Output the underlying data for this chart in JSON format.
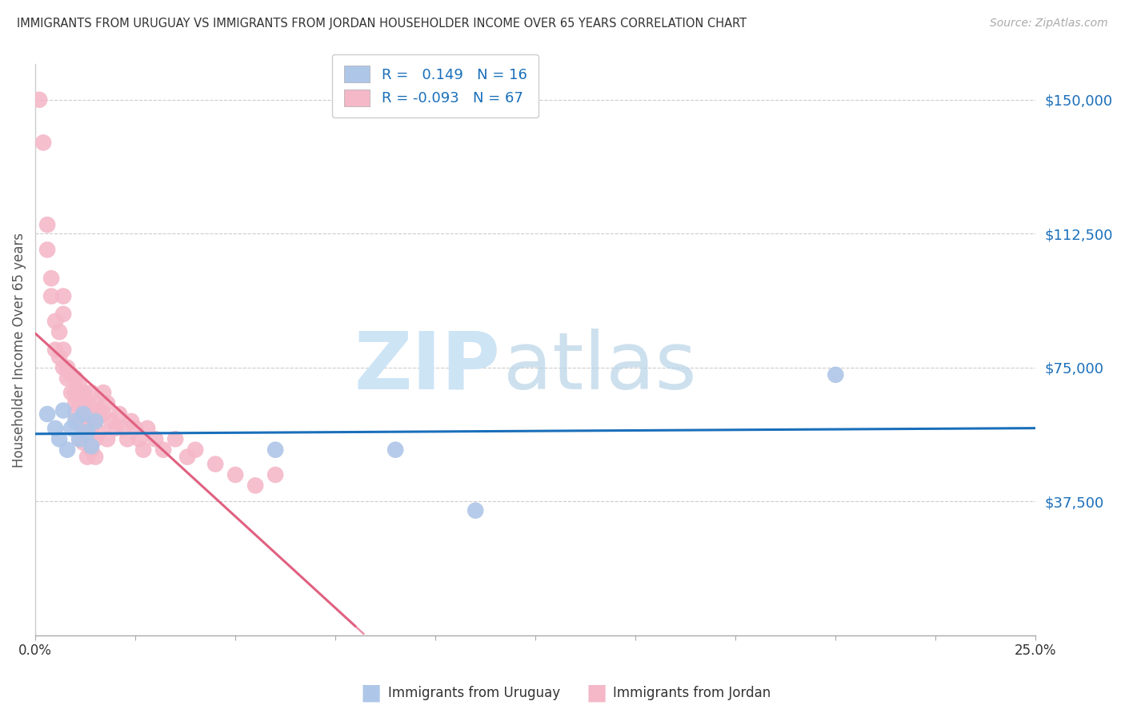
{
  "title": "IMMIGRANTS FROM URUGUAY VS IMMIGRANTS FROM JORDAN HOUSEHOLDER INCOME OVER 65 YEARS CORRELATION CHART",
  "source": "Source: ZipAtlas.com",
  "ylabel": "Householder Income Over 65 years",
  "xlim": [
    0.0,
    0.25
  ],
  "ylim": [
    0,
    160000
  ],
  "yticks": [
    0,
    37500,
    75000,
    112500,
    150000
  ],
  "ytick_labels": [
    "",
    "$37,500",
    "$75,000",
    "$112,500",
    "$150,000"
  ],
  "xticks": [
    0.0,
    0.025,
    0.05,
    0.075,
    0.1,
    0.125,
    0.15,
    0.175,
    0.2,
    0.225,
    0.25
  ],
  "xtick_labels": [
    "0.0%",
    "",
    "",
    "",
    "",
    "",
    "",
    "",
    "",
    "",
    "25.0%"
  ],
  "r_uruguay": 0.149,
  "n_uruguay": 16,
  "r_jordan": -0.093,
  "n_jordan": 67,
  "uruguay_scatter_color": "#aec6e8",
  "jordan_scatter_color": "#f4b8c8",
  "uruguay_line_color": "#1a6fba",
  "jordan_line_color": "#e06080",
  "background_color": "#ffffff",
  "uruguay_points": [
    [
      0.003,
      62000
    ],
    [
      0.005,
      58000
    ],
    [
      0.006,
      55000
    ],
    [
      0.007,
      63000
    ],
    [
      0.008,
      52000
    ],
    [
      0.009,
      58000
    ],
    [
      0.01,
      60000
    ],
    [
      0.011,
      55000
    ],
    [
      0.012,
      62000
    ],
    [
      0.013,
      57000
    ],
    [
      0.014,
      53000
    ],
    [
      0.015,
      60000
    ],
    [
      0.06,
      52000
    ],
    [
      0.09,
      52000
    ],
    [
      0.11,
      35000
    ],
    [
      0.2,
      73000
    ]
  ],
  "jordan_points": [
    [
      0.001,
      150000
    ],
    [
      0.002,
      138000
    ],
    [
      0.003,
      115000
    ],
    [
      0.003,
      108000
    ],
    [
      0.004,
      100000
    ],
    [
      0.004,
      95000
    ],
    [
      0.005,
      88000
    ],
    [
      0.005,
      80000
    ],
    [
      0.006,
      85000
    ],
    [
      0.006,
      78000
    ],
    [
      0.007,
      80000
    ],
    [
      0.007,
      75000
    ],
    [
      0.007,
      95000
    ],
    [
      0.007,
      90000
    ],
    [
      0.008,
      75000
    ],
    [
      0.008,
      72000
    ],
    [
      0.009,
      73000
    ],
    [
      0.009,
      68000
    ],
    [
      0.01,
      72000
    ],
    [
      0.01,
      68000
    ],
    [
      0.01,
      65000
    ],
    [
      0.01,
      62000
    ],
    [
      0.011,
      70000
    ],
    [
      0.011,
      65000
    ],
    [
      0.011,
      60000
    ],
    [
      0.011,
      55000
    ],
    [
      0.012,
      68000
    ],
    [
      0.012,
      63000
    ],
    [
      0.012,
      58000
    ],
    [
      0.012,
      54000
    ],
    [
      0.013,
      65000
    ],
    [
      0.013,
      60000
    ],
    [
      0.013,
      55000
    ],
    [
      0.013,
      50000
    ],
    [
      0.014,
      68000
    ],
    [
      0.014,
      63000
    ],
    [
      0.014,
      58000
    ],
    [
      0.014,
      52000
    ],
    [
      0.015,
      65000
    ],
    [
      0.015,
      60000
    ],
    [
      0.015,
      55000
    ],
    [
      0.015,
      50000
    ],
    [
      0.016,
      63000
    ],
    [
      0.016,
      57000
    ],
    [
      0.017,
      68000
    ],
    [
      0.017,
      62000
    ],
    [
      0.018,
      65000
    ],
    [
      0.018,
      55000
    ],
    [
      0.019,
      60000
    ],
    [
      0.02,
      58000
    ],
    [
      0.021,
      62000
    ],
    [
      0.022,
      58000
    ],
    [
      0.023,
      55000
    ],
    [
      0.024,
      60000
    ],
    [
      0.025,
      58000
    ],
    [
      0.026,
      55000
    ],
    [
      0.027,
      52000
    ],
    [
      0.028,
      58000
    ],
    [
      0.03,
      55000
    ],
    [
      0.032,
      52000
    ],
    [
      0.035,
      55000
    ],
    [
      0.038,
      50000
    ],
    [
      0.04,
      52000
    ],
    [
      0.045,
      48000
    ],
    [
      0.05,
      45000
    ],
    [
      0.055,
      42000
    ],
    [
      0.06,
      45000
    ]
  ],
  "jordan_line_xstart": 0.0,
  "jordan_line_xsolid_end": 0.08,
  "jordan_line_xdash_end": 0.25,
  "uruguay_line_xstart": 0.0,
  "uruguay_line_xend": 0.25
}
